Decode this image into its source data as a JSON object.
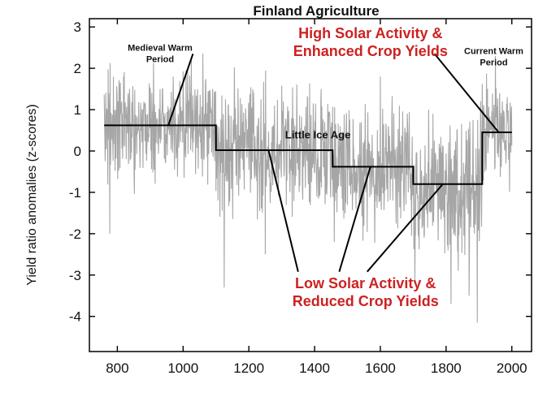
{
  "chart_data": {
    "type": "line",
    "title": "Finland Agriculture",
    "xlabel": "",
    "ylabel": "Yield ratio anomalies (z-scores)",
    "xlim": [
      715,
      2060
    ],
    "ylim": [
      -4.85,
      3.2
    ],
    "x_ticks": [
      800,
      1000,
      1200,
      1400,
      1600,
      1800,
      2000
    ],
    "y_ticks": [
      3,
      2,
      1,
      0,
      -1,
      -2,
      -3,
      -4
    ],
    "x_tick_labels": [
      "800",
      "1000",
      "1200",
      "1400",
      "1600",
      "1800",
      "2000"
    ],
    "y_tick_labels": [
      "3",
      "2",
      "1",
      "0",
      "-1",
      "-2",
      "-3",
      "-4"
    ],
    "grid": false,
    "series": [
      {
        "kind": "annual anomalies",
        "color": "#a6a6a6",
        "x_range": [
          760,
          2000
        ],
        "level_by_period": [
          {
            "x_start": 760,
            "x_end": 1100,
            "mean": 0.65,
            "spread": 1.3
          },
          {
            "x_start": 1100,
            "x_end": 1460,
            "mean": 0.03,
            "spread": 1.5
          },
          {
            "x_start": 1460,
            "x_end": 1700,
            "mean": -0.38,
            "spread": 1.5
          },
          {
            "x_start": 1700,
            "x_end": 1910,
            "mean": -0.8,
            "spread": 1.6
          },
          {
            "x_start": 1910,
            "x_end": 2000,
            "mean": 0.45,
            "spread": 1.1
          }
        ],
        "spikes": [
          {
            "x": 777,
            "y": -2.0
          },
          {
            "x": 1025,
            "y": 2.2
          },
          {
            "x": 1060,
            "y": 2.35
          },
          {
            "x": 1125,
            "y": -3.3
          },
          {
            "x": 1250,
            "y": -2.5
          },
          {
            "x": 1460,
            "y": -2.2
          },
          {
            "x": 1600,
            "y": 1.8
          },
          {
            "x": 1705,
            "y": -3.15
          },
          {
            "x": 1815,
            "y": -3.7
          },
          {
            "x": 1870,
            "y": -3.5
          },
          {
            "x": 1895,
            "y": -4.15
          },
          {
            "x": 1950,
            "y": 2.3
          }
        ]
      },
      {
        "kind": "period means",
        "color": "#000000",
        "steps": [
          {
            "x_start": 760,
            "x_end": 1100,
            "y": 0.62
          },
          {
            "x_start": 1100,
            "x_end": 1455,
            "y": 0.02
          },
          {
            "x_start": 1455,
            "x_end": 1700,
            "y": -0.38
          },
          {
            "x_start": 1700,
            "x_end": 1910,
            "y": -0.8
          },
          {
            "x_start": 1910,
            "x_end": 2000,
            "y": 0.45
          }
        ]
      }
    ],
    "annotations": [
      {
        "lines": [
          "Medieval Warm",
          "Period"
        ],
        "style": "small",
        "x": 930,
        "y": 2.42
      },
      {
        "lines": [
          "Current Warm",
          "Period"
        ],
        "style": "small",
        "x": 1945,
        "y": 2.35
      },
      {
        "lines": [
          "Little Ice Age"
        ],
        "style": "mid",
        "x": 1410,
        "y": 0.3
      },
      {
        "lines": [
          "High Solar Activity &",
          "Enhanced Crop Yields"
        ],
        "style": "red",
        "x": 1570,
        "y": 2.73
      },
      {
        "lines": [
          "Low Solar Activity &",
          "Reduced Crop Yields"
        ],
        "style": "red",
        "x": 1555,
        "y": -3.32
      }
    ],
    "pointers": [
      {
        "from": [
          1030,
          2.35
        ],
        "to": [
          955,
          0.62
        ]
      },
      {
        "from": [
          1765,
          2.35
        ],
        "to": [
          1960,
          0.45
        ]
      },
      {
        "from": [
          1350,
          -2.92
        ],
        "to": [
          1260,
          0.02
        ]
      },
      {
        "from": [
          1475,
          -2.92
        ],
        "to": [
          1570,
          -0.38
        ]
      },
      {
        "from": [
          1560,
          -2.92
        ],
        "to": [
          1790,
          -0.8
        ]
      }
    ]
  }
}
